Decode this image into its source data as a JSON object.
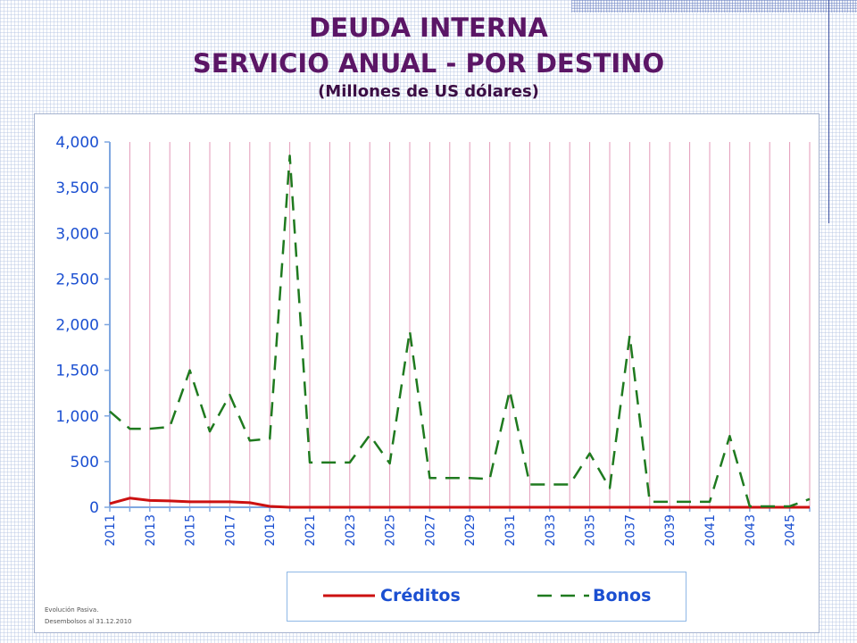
{
  "title_line1": "DEUDA INTERNA",
  "title_line2": "SERVICIO ANUAL - POR DESTINO",
  "subtitle": "(Millones de US dólares)",
  "footnotes": [
    "Evolución Pasiva.",
    "Desembolsos al 31.12.2010"
  ],
  "chart_data": {
    "type": "line",
    "title": "SERVICIO ANUAL - POR DESTINO",
    "subtitle": "(Millones de US dólares)",
    "x": [
      2011,
      2012,
      2013,
      2014,
      2015,
      2016,
      2017,
      2018,
      2019,
      2020,
      2021,
      2022,
      2023,
      2024,
      2025,
      2026,
      2027,
      2028,
      2029,
      2030,
      2031,
      2032,
      2033,
      2034,
      2035,
      2036,
      2037,
      2038,
      2039,
      2040,
      2041,
      2042,
      2043,
      2044,
      2045,
      2046
    ],
    "x_tick_labels": [
      "2011",
      "2013",
      "2015",
      "2017",
      "2019",
      "2021",
      "2023",
      "2025",
      "2027",
      "2029",
      "2031",
      "2033",
      "2035",
      "2037",
      "2039",
      "2041",
      "2043",
      "2045"
    ],
    "ylim": [
      0,
      4000
    ],
    "y_ticks": [
      0,
      500,
      1000,
      1500,
      2000,
      2500,
      3000,
      3500,
      4000
    ],
    "y_tick_labels": [
      "0",
      "500",
      "1,000",
      "1,500",
      "2,000",
      "2,500",
      "3,000",
      "3,500",
      "4,000"
    ],
    "grid": "vertical",
    "legend_position": "bottom",
    "series": [
      {
        "name": "Créditos",
        "style": "solid",
        "color": "#cc1111",
        "values": [
          40,
          100,
          75,
          70,
          60,
          60,
          60,
          50,
          10,
          0,
          0,
          0,
          0,
          0,
          0,
          0,
          0,
          0,
          0,
          0,
          0,
          0,
          0,
          0,
          0,
          0,
          0,
          0,
          0,
          0,
          0,
          0,
          0,
          0,
          0,
          0
        ]
      },
      {
        "name": "Bonos",
        "style": "dashed",
        "color": "#1f7a1f",
        "values": [
          1050,
          860,
          860,
          880,
          1500,
          830,
          1230,
          730,
          750,
          3850,
          490,
          490,
          490,
          790,
          480,
          1930,
          320,
          320,
          320,
          310,
          1280,
          250,
          250,
          250,
          590,
          210,
          1880,
          60,
          60,
          60,
          60,
          780,
          10,
          10,
          10,
          90
        ]
      }
    ]
  },
  "colors": {
    "title": "#5b1666",
    "axis": "#7fa7e0",
    "tick_label": "#1b4fd1",
    "grid": "#e49ab8"
  }
}
